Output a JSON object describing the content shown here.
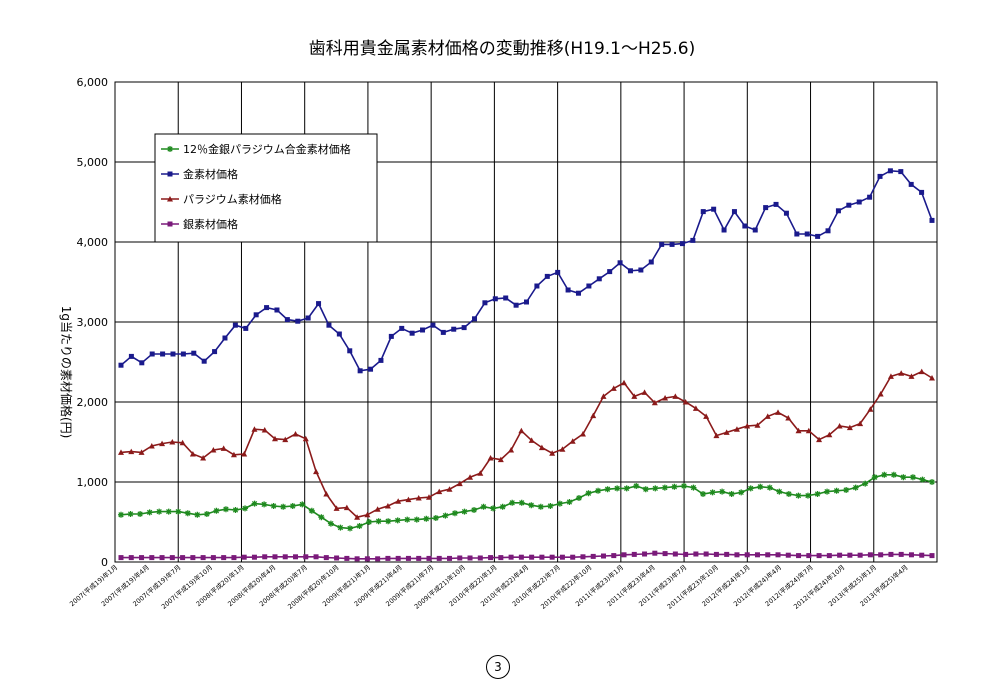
{
  "page_number": "3",
  "chart_data": {
    "type": "line",
    "title": "歯科用貴金属素材価格の変動推移(H19.1～H25.6)",
    "xlabel": "",
    "ylabel": "1g当たりの素材価格(円)",
    "ylim": [
      0,
      6000
    ],
    "yticks": [
      "0",
      "1,000",
      "2,000",
      "3,000",
      "4,000",
      "5,000",
      "6,000"
    ],
    "grid": true,
    "legend_position": "top-left",
    "x_tick_labels": [
      "2007(平成19)年1月",
      "2007(平成19)年4月",
      "2007(平成19)年7月",
      "2007(平成19)年10月",
      "2008(平成20)年1月",
      "2008(平成20)年4月",
      "2008(平成20)年7月",
      "2008(平成20)年10月",
      "2009(平成21)年1月",
      "2009(平成21)年4月",
      "2009(平成21)年7月",
      "2009(平成21)年10月",
      "2010(平成22)年1月",
      "2010(平成22)年4月",
      "2010(平成22)年7月",
      "2010(平成22)年10月",
      "2011(平成23)年1月",
      "2011(平成23)年4月",
      "2011(平成23)年7月",
      "2011(平成23)年10月",
      "2012(平成24)年1月",
      "2012(平成24)年4月",
      "2012(平成24)年7月",
      "2012(平成24)年10月",
      "2013(平成25)年1月",
      "2013(平成25)年4月"
    ],
    "series": [
      {
        "name": "12％金銀パラジウム合金素材価格",
        "color": "#1f8a1f",
        "marker": "star",
        "values": [
          590,
          600,
          600,
          620,
          630,
          630,
          630,
          610,
          590,
          600,
          640,
          660,
          650,
          670,
          730,
          720,
          700,
          690,
          700,
          720,
          640,
          560,
          480,
          430,
          420,
          450,
          500,
          510,
          510,
          520,
          530,
          530,
          540,
          550,
          580,
          610,
          630,
          650,
          690,
          670,
          690,
          740,
          740,
          710,
          690,
          700,
          730,
          750,
          800,
          860,
          890,
          910,
          920,
          920,
          950,
          910,
          920,
          930,
          940,
          950,
          930,
          850,
          870,
          880,
          850,
          870,
          920,
          940,
          930,
          880,
          850,
          830,
          830,
          850,
          880,
          890,
          900,
          930,
          980,
          1060,
          1090,
          1090,
          1060,
          1060,
          1030,
          1000
        ]
      },
      {
        "name": "金素材価格",
        "color": "#1a1a8c",
        "marker": "square",
        "values": [
          2460,
          2570,
          2490,
          2600,
          2600,
          2600,
          2600,
          2610,
          2510,
          2630,
          2800,
          2960,
          2920,
          3090,
          3180,
          3150,
          3030,
          3010,
          3050,
          3230,
          2960,
          2850,
          2640,
          2390,
          2410,
          2520,
          2820,
          2920,
          2860,
          2900,
          2960,
          2870,
          2910,
          2930,
          3040,
          3240,
          3290,
          3300,
          3210,
          3250,
          3450,
          3570,
          3620,
          3400,
          3360,
          3450,
          3540,
          3630,
          3740,
          3640,
          3650,
          3750,
          3970,
          3970,
          3980,
          4020,
          4380,
          4410,
          4150,
          4380,
          4200,
          4150,
          4430,
          4470,
          4360,
          4100,
          4100,
          4070,
          4140,
          4390,
          4460,
          4500,
          4560,
          4820,
          4890,
          4880,
          4720,
          4620,
          4270
        ]
      },
      {
        "name": "パラジウム素材価格",
        "color": "#8b1a1a",
        "marker": "triangle",
        "values": [
          1370,
          1380,
          1370,
          1450,
          1480,
          1500,
          1490,
          1350,
          1300,
          1400,
          1420,
          1340,
          1350,
          1660,
          1650,
          1540,
          1530,
          1600,
          1540,
          1130,
          850,
          670,
          680,
          560,
          590,
          660,
          700,
          760,
          780,
          800,
          810,
          880,
          910,
          980,
          1060,
          1110,
          1300,
          1280,
          1400,
          1640,
          1520,
          1430,
          1360,
          1410,
          1510,
          1600,
          1830,
          2070,
          2170,
          2240,
          2070,
          2120,
          1990,
          2050,
          2070,
          2000,
          1920,
          1820,
          1580,
          1620,
          1660,
          1700,
          1710,
          1820,
          1870,
          1800,
          1640,
          1640,
          1530,
          1590,
          1700,
          1680,
          1730,
          1910,
          2100,
          2320,
          2360,
          2320,
          2380,
          2300
        ]
      },
      {
        "name": "銀素材価格",
        "color": "#7a1a7a",
        "marker": "square",
        "values": [
          55,
          55,
          55,
          55,
          55,
          55,
          55,
          55,
          55,
          55,
          55,
          55,
          60,
          60,
          65,
          65,
          65,
          65,
          65,
          65,
          55,
          50,
          45,
          40,
          40,
          40,
          45,
          45,
          45,
          45,
          45,
          45,
          45,
          50,
          50,
          50,
          55,
          55,
          60,
          60,
          60,
          60,
          60,
          60,
          60,
          65,
          70,
          75,
          80,
          90,
          95,
          100,
          110,
          105,
          100,
          95,
          100,
          100,
          95,
          95,
          90,
          90,
          90,
          90,
          90,
          85,
          80,
          80,
          80,
          80,
          85,
          85,
          85,
          90,
          90,
          95,
          95,
          90,
          85,
          80
        ]
      }
    ]
  }
}
